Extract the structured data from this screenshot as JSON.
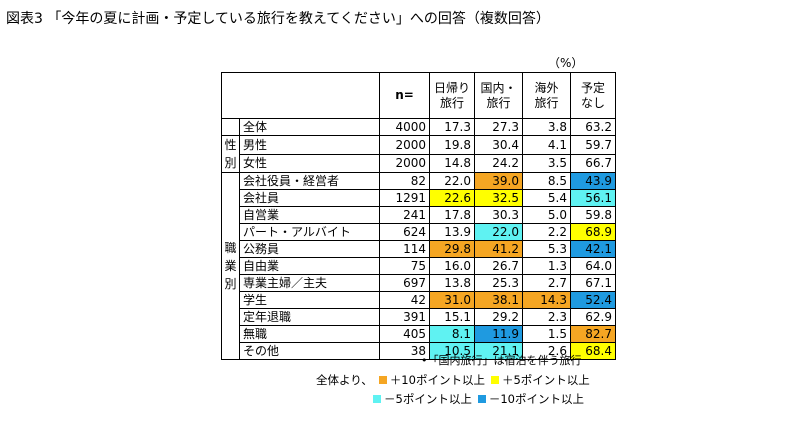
{
  "title": "図表3 「今年の夏に計画・予定している旅行を教えてください」への回答（複数回答）",
  "unit": "（%）",
  "headers": {
    "n": "n=",
    "cols": [
      [
        "日帰り",
        "旅行"
      ],
      [
        "国内・",
        "旅行"
      ],
      [
        "海外",
        "旅行"
      ],
      [
        "予定",
        "なし"
      ]
    ]
  },
  "groups": {
    "gender": [
      "性",
      "別"
    ],
    "occupation": [
      "職",
      "業",
      "別"
    ]
  },
  "rows": [
    {
      "label": "全体",
      "n": "4000",
      "values": [
        "17.3",
        "27.3",
        "3.8",
        "63.2"
      ],
      "highlights": [
        "",
        "",
        "",
        ""
      ]
    },
    {
      "label": "男性",
      "n": "2000",
      "values": [
        "19.8",
        "30.4",
        "4.1",
        "59.7"
      ],
      "highlights": [
        "",
        "",
        "",
        ""
      ]
    },
    {
      "label": "女性",
      "n": "2000",
      "values": [
        "14.8",
        "24.2",
        "3.5",
        "66.7"
      ],
      "highlights": [
        "",
        "",
        "",
        ""
      ]
    },
    {
      "label": "会社役員・経営者",
      "n": "82",
      "values": [
        "22.0",
        "39.0",
        "8.5",
        "43.9"
      ],
      "highlights": [
        "",
        "orange",
        "",
        "blue"
      ]
    },
    {
      "label": "会社員",
      "n": "1291",
      "values": [
        "22.6",
        "32.5",
        "5.4",
        "56.1"
      ],
      "highlights": [
        "yellow",
        "yellow",
        "",
        "cyan"
      ]
    },
    {
      "label": "自営業",
      "n": "241",
      "values": [
        "17.8",
        "30.3",
        "5.0",
        "59.8"
      ],
      "highlights": [
        "",
        "",
        "",
        ""
      ]
    },
    {
      "label": "パート・アルバイト",
      "n": "624",
      "values": [
        "13.9",
        "22.0",
        "2.2",
        "68.9"
      ],
      "highlights": [
        "",
        "cyan",
        "",
        "yellow"
      ]
    },
    {
      "label": "公務員",
      "n": "114",
      "values": [
        "29.8",
        "41.2",
        "5.3",
        "42.1"
      ],
      "highlights": [
        "orange",
        "orange",
        "",
        "blue"
      ]
    },
    {
      "label": "自由業",
      "n": "75",
      "values": [
        "16.0",
        "26.7",
        "1.3",
        "64.0"
      ],
      "highlights": [
        "",
        "",
        "",
        ""
      ]
    },
    {
      "label": "専業主婦／主夫",
      "n": "697",
      "values": [
        "13.8",
        "25.3",
        "2.7",
        "67.1"
      ],
      "highlights": [
        "",
        "",
        "",
        ""
      ]
    },
    {
      "label": "学生",
      "n": "42",
      "values": [
        "31.0",
        "38.1",
        "14.3",
        "52.4"
      ],
      "highlights": [
        "orange",
        "orange",
        "orange",
        "blue"
      ]
    },
    {
      "label": "定年退職",
      "n": "391",
      "values": [
        "15.1",
        "29.2",
        "2.3",
        "62.9"
      ],
      "highlights": [
        "",
        "",
        "",
        ""
      ]
    },
    {
      "label": "無職",
      "n": "405",
      "values": [
        "8.1",
        "11.9",
        "1.5",
        "82.7"
      ],
      "highlights": [
        "cyan",
        "blue",
        "",
        "orange"
      ]
    },
    {
      "label": "その他",
      "n": "38",
      "values": [
        "10.5",
        "21.1",
        "2.6",
        "68.4"
      ],
      "highlights": [
        "cyan",
        "cyan",
        "",
        "yellow"
      ]
    }
  ],
  "note": "•「国内旅行」は宿泊を伴う旅行",
  "legend": {
    "prefix": "全体より、",
    "items": [
      {
        "label": "＋10ポイント以上",
        "color": "#f5a623"
      },
      {
        "label": "＋5ポイント以上",
        "color": "#ffff00"
      },
      {
        "label": "－5ポイント以上",
        "color": "#5ff2f2"
      },
      {
        "label": "－10ポイント以上",
        "color": "#1f9ae0"
      }
    ]
  }
}
